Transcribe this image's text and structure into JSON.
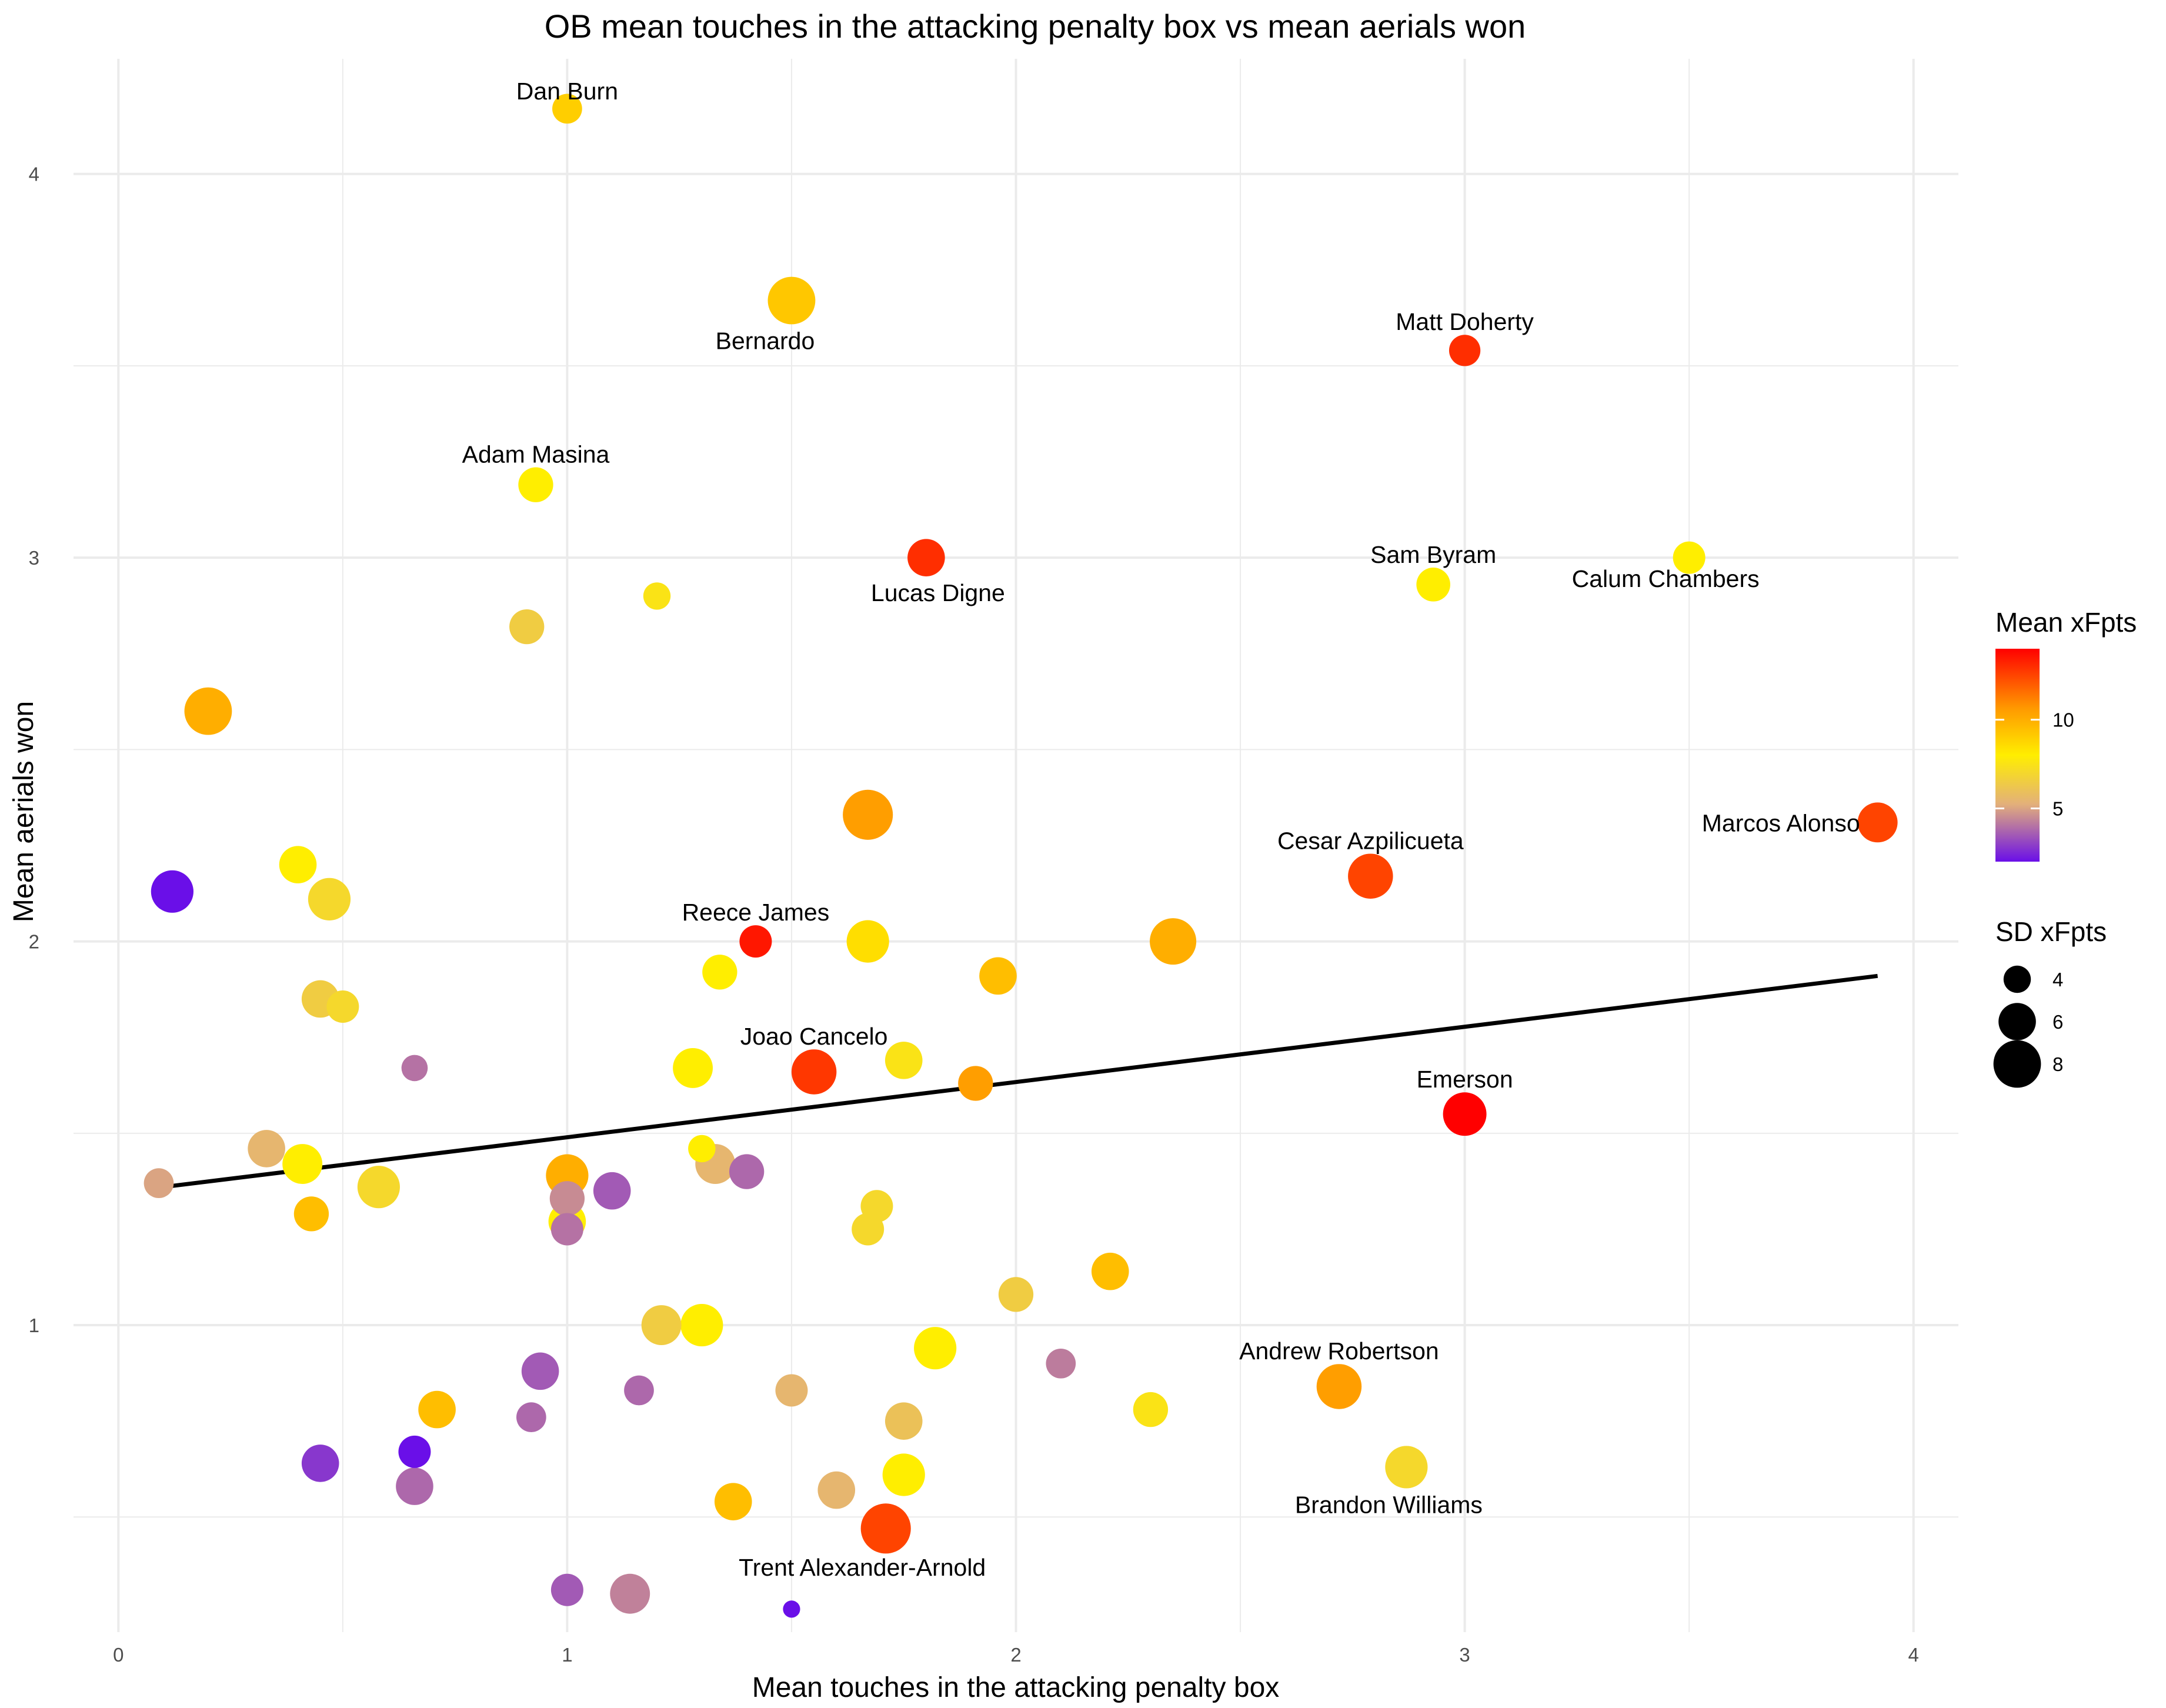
{
  "chart_data": {
    "type": "scatter",
    "title": "OB mean touches in the attacking penalty box vs mean aerials won",
    "xlabel": "Mean touches in the attacking penalty box",
    "ylabel": "Mean aerials won",
    "xlim": [
      -0.1,
      4.1
    ],
    "ylim": [
      0.2,
      4.3
    ],
    "x_ticks": [
      0,
      1,
      2,
      3,
      4
    ],
    "y_ticks": [
      1,
      2,
      3,
      4
    ],
    "grid": true,
    "legend_position": "right",
    "color_legend": {
      "title": "Mean xFpts",
      "ticks": [
        5,
        10
      ],
      "min": 2,
      "max": 14,
      "colors": [
        "#6a0fe8",
        "#e3b07a",
        "#ffee00",
        "#ff9900",
        "#ff0000"
      ]
    },
    "size_legend": {
      "title": "SD xFpts",
      "ticks": [
        4,
        6,
        8
      ]
    },
    "trend_line": {
      "x": [
        0.1,
        3.92
      ],
      "y": [
        1.36,
        1.91
      ]
    },
    "points": [
      {
        "x": 1.0,
        "y": 4.17,
        "c": 9.0,
        "s": 4.5,
        "label": "Dan Burn"
      },
      {
        "x": 1.5,
        "y": 3.67,
        "c": 9.2,
        "s": 8.0,
        "label": "Bernardo"
      },
      {
        "x": 3.0,
        "y": 3.54,
        "c": 13.0,
        "s": 4.8,
        "label": "Matt Doherty"
      },
      {
        "x": 0.93,
        "y": 3.19,
        "c": 8.0,
        "s": 5.5,
        "label": "Adam Masina"
      },
      {
        "x": 1.8,
        "y": 3.0,
        "c": 13.0,
        "s": 6.0,
        "label": "Lucas Digne"
      },
      {
        "x": 2.93,
        "y": 2.93,
        "c": 8.0,
        "s": 5.3,
        "label": "Sam Byram"
      },
      {
        "x": 3.5,
        "y": 3.0,
        "c": 8.0,
        "s": 5.0,
        "label": "Calum Chambers"
      },
      {
        "x": 3.92,
        "y": 2.31,
        "c": 12.5,
        "s": 6.5,
        "label": "Marcos Alonso"
      },
      {
        "x": 2.79,
        "y": 2.17,
        "c": 12.5,
        "s": 7.5,
        "label": "Cesar Azpilicueta"
      },
      {
        "x": 1.42,
        "y": 2.0,
        "c": 13.5,
        "s": 5.0,
        "label": "Reece James"
      },
      {
        "x": 1.55,
        "y": 1.66,
        "c": 12.8,
        "s": 7.5,
        "label": "Joao Cancelo"
      },
      {
        "x": 3.0,
        "y": 1.55,
        "c": 14.0,
        "s": 7.2,
        "label": "Emerson"
      },
      {
        "x": 2.72,
        "y": 0.84,
        "c": 10.5,
        "s": 7.5,
        "label": "Andrew Robertson"
      },
      {
        "x": 2.87,
        "y": 0.63,
        "c": 7.0,
        "s": 7.0,
        "label": "Brandon Williams"
      },
      {
        "x": 1.71,
        "y": 0.47,
        "c": 12.5,
        "s": 8.5,
        "label": "Trent Alexander-Arnold"
      },
      {
        "x": 0.91,
        "y": 2.82,
        "c": 6.5,
        "s": 5.5,
        "label": ""
      },
      {
        "x": 1.2,
        "y": 2.9,
        "c": 7.5,
        "s": 4.0,
        "label": ""
      },
      {
        "x": 0.2,
        "y": 2.6,
        "c": 10.0,
        "s": 8.0,
        "label": ""
      },
      {
        "x": 0.4,
        "y": 2.2,
        "c": 8.0,
        "s": 6.0,
        "label": ""
      },
      {
        "x": 0.47,
        "y": 2.11,
        "c": 7.0,
        "s": 7.0,
        "label": ""
      },
      {
        "x": 0.12,
        "y": 2.13,
        "c": 2.0,
        "s": 7.0,
        "label": ""
      },
      {
        "x": 1.67,
        "y": 2.33,
        "c": 10.5,
        "s": 8.5,
        "label": ""
      },
      {
        "x": 1.67,
        "y": 2.0,
        "c": 8.5,
        "s": 7.0,
        "label": ""
      },
      {
        "x": 2.35,
        "y": 2.0,
        "c": 10.0,
        "s": 7.8,
        "label": ""
      },
      {
        "x": 1.96,
        "y": 1.91,
        "c": 9.5,
        "s": 6.0,
        "label": ""
      },
      {
        "x": 1.34,
        "y": 1.92,
        "c": 8.0,
        "s": 5.5,
        "label": ""
      },
      {
        "x": 0.45,
        "y": 1.85,
        "c": 6.5,
        "s": 6.0,
        "label": ""
      },
      {
        "x": 0.5,
        "y": 1.83,
        "c": 7.0,
        "s": 5.0,
        "label": ""
      },
      {
        "x": 0.66,
        "y": 1.67,
        "c": 4.0,
        "s": 3.8,
        "label": ""
      },
      {
        "x": 1.28,
        "y": 1.67,
        "c": 8.0,
        "s": 6.5,
        "label": ""
      },
      {
        "x": 1.75,
        "y": 1.69,
        "c": 7.5,
        "s": 6.0,
        "label": ""
      },
      {
        "x": 1.91,
        "y": 1.63,
        "c": 10.5,
        "s": 5.5,
        "label": ""
      },
      {
        "x": 0.09,
        "y": 1.37,
        "c": 5.0,
        "s": 4.5,
        "label": ""
      },
      {
        "x": 0.33,
        "y": 1.46,
        "c": 5.5,
        "s": 6.0,
        "label": ""
      },
      {
        "x": 0.41,
        "y": 1.42,
        "c": 8.0,
        "s": 6.5,
        "label": ""
      },
      {
        "x": 0.43,
        "y": 1.29,
        "c": 9.5,
        "s": 5.5,
        "label": ""
      },
      {
        "x": 0.58,
        "y": 1.36,
        "c": 7.0,
        "s": 7.0,
        "label": ""
      },
      {
        "x": 1.0,
        "y": 1.39,
        "c": 10.0,
        "s": 7.0,
        "label": ""
      },
      {
        "x": 1.0,
        "y": 1.33,
        "c": 4.5,
        "s": 5.5,
        "label": ""
      },
      {
        "x": 1.0,
        "y": 1.25,
        "c": 4.0,
        "s": 5.0,
        "label": ""
      },
      {
        "x": 1.0,
        "y": 1.27,
        "c": 8.0,
        "s": 6.0,
        "label": ""
      },
      {
        "x": 1.1,
        "y": 1.35,
        "c": 3.5,
        "s": 6.0,
        "label": ""
      },
      {
        "x": 1.3,
        "y": 1.46,
        "c": 8.0,
        "s": 4.0,
        "label": ""
      },
      {
        "x": 1.33,
        "y": 1.42,
        "c": 5.5,
        "s": 6.5,
        "label": ""
      },
      {
        "x": 1.4,
        "y": 1.4,
        "c": 3.8,
        "s": 5.5,
        "label": ""
      },
      {
        "x": 1.69,
        "y": 1.31,
        "c": 7.0,
        "s": 5.0,
        "label": ""
      },
      {
        "x": 1.67,
        "y": 1.25,
        "c": 7.0,
        "s": 5.0,
        "label": ""
      },
      {
        "x": 2.0,
        "y": 1.08,
        "c": 6.5,
        "s": 5.5,
        "label": ""
      },
      {
        "x": 2.21,
        "y": 1.14,
        "c": 9.5,
        "s": 6.0,
        "label": ""
      },
      {
        "x": 1.21,
        "y": 1.0,
        "c": 6.5,
        "s": 6.5,
        "label": ""
      },
      {
        "x": 1.3,
        "y": 1.0,
        "c": 8.0,
        "s": 7.0,
        "label": ""
      },
      {
        "x": 1.82,
        "y": 0.94,
        "c": 8.0,
        "s": 7.0,
        "label": ""
      },
      {
        "x": 2.1,
        "y": 0.9,
        "c": 4.2,
        "s": 4.5,
        "label": ""
      },
      {
        "x": 0.94,
        "y": 0.88,
        "c": 3.5,
        "s": 6.0,
        "label": ""
      },
      {
        "x": 1.16,
        "y": 0.83,
        "c": 3.8,
        "s": 4.5,
        "label": ""
      },
      {
        "x": 1.5,
        "y": 0.83,
        "c": 5.5,
        "s": 5.0,
        "label": ""
      },
      {
        "x": 0.71,
        "y": 0.78,
        "c": 9.5,
        "s": 6.0,
        "label": ""
      },
      {
        "x": 0.92,
        "y": 0.76,
        "c": 3.8,
        "s": 4.5,
        "label": ""
      },
      {
        "x": 1.75,
        "y": 0.75,
        "c": 6.0,
        "s": 6.0,
        "label": ""
      },
      {
        "x": 2.3,
        "y": 0.78,
        "c": 7.5,
        "s": 5.5,
        "label": ""
      },
      {
        "x": 0.45,
        "y": 0.64,
        "c": 2.8,
        "s": 6.0,
        "label": ""
      },
      {
        "x": 0.66,
        "y": 0.67,
        "c": 2.0,
        "s": 5.0,
        "label": ""
      },
      {
        "x": 0.66,
        "y": 0.58,
        "c": 3.8,
        "s": 6.0,
        "label": ""
      },
      {
        "x": 1.75,
        "y": 0.61,
        "c": 8.0,
        "s": 7.0,
        "label": ""
      },
      {
        "x": 1.6,
        "y": 0.57,
        "c": 5.5,
        "s": 6.0,
        "label": ""
      },
      {
        "x": 1.37,
        "y": 0.54,
        "c": 9.5,
        "s": 6.0,
        "label": ""
      },
      {
        "x": 1.0,
        "y": 0.31,
        "c": 3.5,
        "s": 5.0,
        "label": ""
      },
      {
        "x": 1.14,
        "y": 0.3,
        "c": 4.3,
        "s": 6.5,
        "label": ""
      },
      {
        "x": 1.5,
        "y": 0.26,
        "c": 2.0,
        "s": 2.0,
        "label": ""
      }
    ]
  }
}
